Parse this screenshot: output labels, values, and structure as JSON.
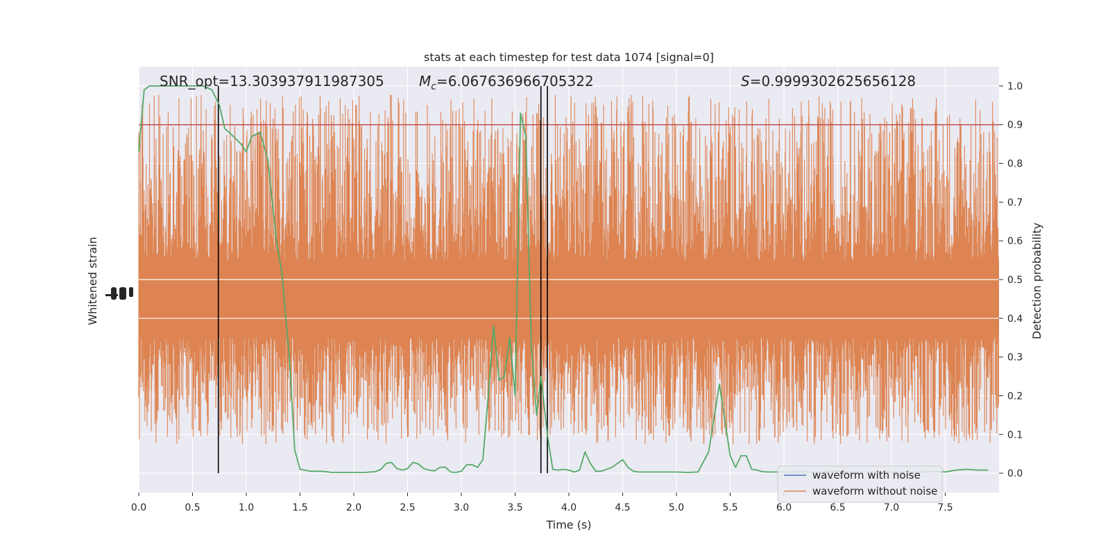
{
  "chart_data": {
    "type": "line",
    "title": "stats at each timestep for test data 1074 [signal=0]",
    "xlabel": "Time (s)",
    "ylabel_left": "Whitened strain",
    "ylabel_right": "Detection probability",
    "xlim": [
      0,
      8
    ],
    "ylim_right": [
      -0.05,
      1.05
    ],
    "x_ticks": [
      "0.0",
      "0.5",
      "1.0",
      "1.5",
      "2.0",
      "2.5",
      "3.0",
      "3.5",
      "4.0",
      "4.5",
      "5.0",
      "5.5",
      "6.0",
      "6.5",
      "7.0",
      "7.5"
    ],
    "y_ticks_right": [
      "0.0",
      "0.1",
      "0.2",
      "0.3",
      "0.4",
      "0.5",
      "0.6",
      "0.7",
      "0.8",
      "0.9",
      "1.0"
    ],
    "grid": true,
    "legend_position": "lower-right",
    "annotations": {
      "snr": "SNR_opt=13.303937911987305",
      "mc_symbol": "M",
      "mc_sub": "c",
      "mc_value": "=6.067636966705322",
      "s_symbol": "S",
      "s_value": "=0.9999302625656128"
    },
    "threshold": 0.9,
    "threshold_color": "#c44e52",
    "vertical_lines": [
      0.74,
      3.74,
      3.8
    ],
    "vline_color": "#000000",
    "series": [
      {
        "name": "waveform with noise",
        "color": "#4c72b0",
        "style": "line",
        "values": []
      },
      {
        "name": "waveform without noise",
        "color": "#dd8452",
        "style": "noise-band",
        "band_center": 0.45,
        "band_core_halfwidth": 0.1,
        "band_extreme_low": 0.06,
        "band_extreme_high": 1.0
      },
      {
        "name": "",
        "color": "#55a868",
        "style": "line",
        "x": [
          0,
          0.05,
          0.1,
          0.2,
          0.3,
          0.4,
          0.5,
          0.6,
          0.68,
          0.75,
          0.8,
          0.88,
          0.95,
          1.0,
          1.05,
          1.13,
          1.2,
          1.28,
          1.33,
          1.4,
          1.45,
          1.5,
          1.6,
          1.7,
          1.8,
          1.9,
          2.0,
          2.1,
          2.2,
          2.25,
          2.3,
          2.35,
          2.4,
          2.45,
          2.5,
          2.55,
          2.6,
          2.65,
          2.7,
          2.75,
          2.8,
          2.85,
          2.9,
          2.95,
          3.0,
          3.05,
          3.1,
          3.15,
          3.2,
          3.25,
          3.3,
          3.35,
          3.4,
          3.45,
          3.5,
          3.55,
          3.6,
          3.65,
          3.7,
          3.74,
          3.8,
          3.85,
          3.9,
          3.95,
          4.0,
          4.05,
          4.1,
          4.15,
          4.2,
          4.25,
          4.3,
          4.4,
          4.5,
          4.55,
          4.6,
          4.65,
          4.7,
          4.75,
          4.8,
          4.85,
          4.9,
          5.0,
          5.1,
          5.2,
          5.3,
          5.4,
          5.5,
          5.55,
          5.6,
          5.65,
          5.7,
          5.75,
          5.8,
          5.85,
          5.9,
          5.95,
          6.0,
          6.05,
          6.1,
          6.15,
          6.2,
          6.3,
          6.4,
          6.5,
          6.6,
          6.7,
          6.8,
          6.9,
          7.0,
          7.1,
          7.2,
          7.3,
          7.4,
          7.5,
          7.6,
          7.7,
          7.8,
          7.9
        ],
        "y": [
          0.83,
          0.99,
          1.0,
          1.0,
          1.0,
          1.0,
          1.0,
          1.0,
          0.99,
          0.95,
          0.89,
          0.87,
          0.85,
          0.83,
          0.87,
          0.88,
          0.81,
          0.6,
          0.52,
          0.3,
          0.06,
          0.01,
          0.005,
          0.005,
          0.002,
          0.002,
          0.002,
          0.002,
          0.004,
          0.01,
          0.025,
          0.028,
          0.012,
          0.008,
          0.012,
          0.028,
          0.024,
          0.012,
          0.008,
          0.006,
          0.015,
          0.016,
          0.003,
          0.002,
          0.005,
          0.022,
          0.022,
          0.015,
          0.035,
          0.2,
          0.38,
          0.24,
          0.25,
          0.35,
          0.2,
          0.93,
          0.87,
          0.33,
          0.15,
          0.25,
          0.1,
          0.01,
          0.008,
          0.01,
          0.008,
          0.003,
          0.008,
          0.055,
          0.025,
          0.005,
          0.005,
          0.015,
          0.035,
          0.015,
          0.005,
          0.003,
          0.003,
          0.003,
          0.003,
          0.003,
          0.003,
          0.003,
          0.002,
          0.003,
          0.055,
          0.23,
          0.045,
          0.015,
          0.045,
          0.045,
          0.01,
          0.008,
          0.004,
          0.003,
          0.003,
          0.003,
          0.003,
          0.003,
          0.003,
          0.003,
          0.003,
          0.003,
          0.003,
          0.005,
          0.003,
          0.003,
          0.003,
          0.003,
          0.003,
          0.003,
          0.003,
          0.003,
          0.005,
          0.003,
          0.008,
          0.01,
          0.008,
          0.008
        ]
      }
    ]
  }
}
